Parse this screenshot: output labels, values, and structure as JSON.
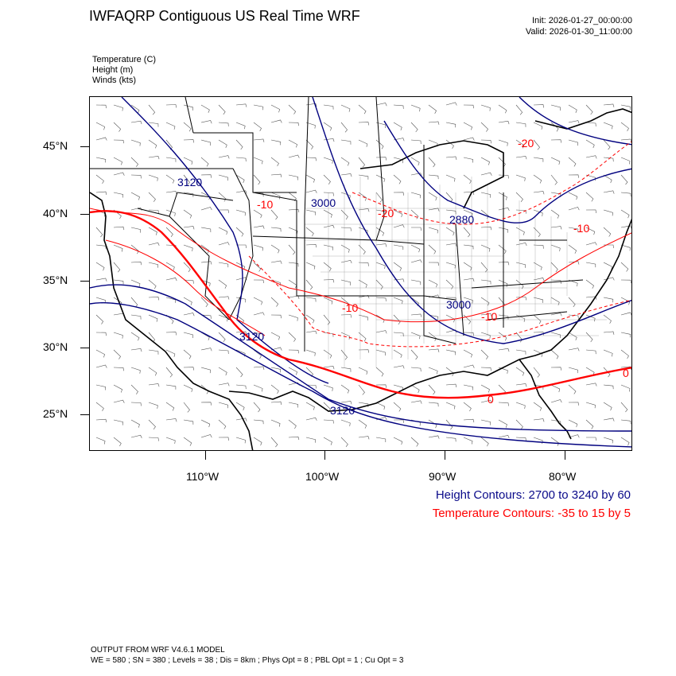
{
  "header": {
    "title": "IWFAQRP Contiguous US Real Time WRF",
    "init": "Init: 2026-01-27_00:00:00",
    "valid": "Valid: 2026-01-30_11:00:00"
  },
  "fields": {
    "temperature": "Temperature   (C)",
    "height": "Height   (m)",
    "winds": "Winds   (kts)"
  },
  "map": {
    "latitude_labels": [
      "45°N",
      "40°N",
      "35°N",
      "30°N",
      "25°N"
    ],
    "longitude_labels": [
      "110°W",
      "100°W",
      "90°W",
      "80°W"
    ],
    "height_contour_labels": [
      "3120",
      "3000",
      "2880",
      "3000",
      "3120",
      "3120"
    ],
    "temperature_contour_labels": [
      "-20",
      "-10",
      "-20",
      "-10",
      "-10",
      "0",
      "0",
      "-10"
    ],
    "colors": {
      "height": "#00007f",
      "temperature": "#ff0000",
      "state_lines": "#000000"
    }
  },
  "legend": {
    "height_contours": "Height Contours: 2700 to 3240 by 60",
    "temperature_contours": "Temperature Contours: -35 to 15 by 5",
    "height_color": "#0a0a8a",
    "temperature_color": "#ff0000"
  },
  "footer": {
    "line1": "OUTPUT FROM WRF V4.6.1 MODEL",
    "line2": "WE = 580 ; SN = 380 ; Levels = 38 ; Dis = 8km ; Phys Opt = 8 ; PBL Opt = 1 ; Cu Opt = 3"
  }
}
